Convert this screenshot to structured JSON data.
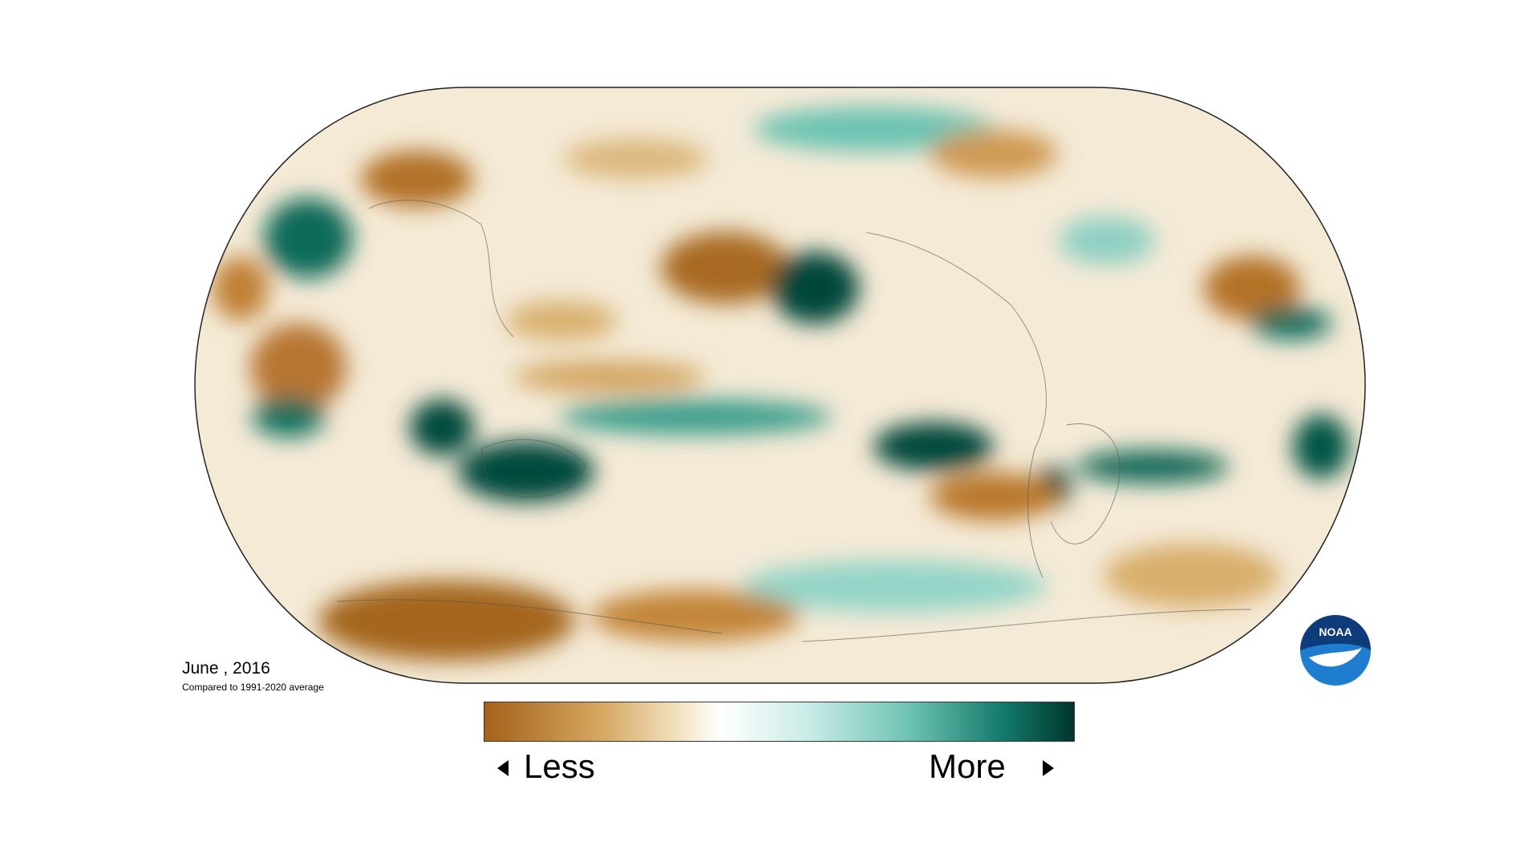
{
  "map": {
    "date_label": "June , 2016",
    "baseline_note": "Compared to 1991-2020 average"
  },
  "legend": {
    "low_label": "Less",
    "high_label": "More"
  },
  "logo": {
    "text": "NOAA"
  }
}
